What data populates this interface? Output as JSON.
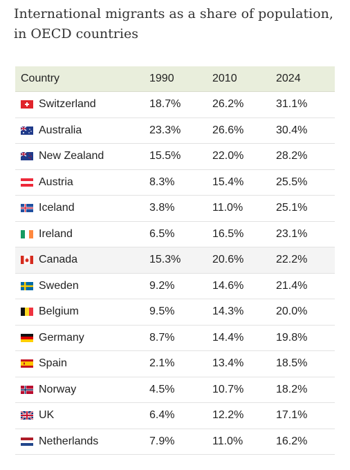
{
  "title": "International migrants as a share of population, in OECD countries",
  "chart_data": {
    "type": "table",
    "title": "International migrants as a share of population, in OECD countries",
    "columns": [
      "Country",
      "1990",
      "2010",
      "2024"
    ],
    "rows": [
      {
        "country": "Switzerland",
        "flag": "switzerland-flag-icon",
        "v1990": "18.7%",
        "v2010": "26.2%",
        "v2024": "31.1%"
      },
      {
        "country": "Australia",
        "flag": "australia-flag-icon",
        "v1990": "23.3%",
        "v2010": "26.6%",
        "v2024": "30.4%"
      },
      {
        "country": "New Zealand",
        "flag": "new-zealand-flag-icon",
        "v1990": "15.5%",
        "v2010": "22.0%",
        "v2024": "28.2%"
      },
      {
        "country": "Austria",
        "flag": "austria-flag-icon",
        "v1990": "8.3%",
        "v2010": "15.4%",
        "v2024": "25.5%"
      },
      {
        "country": "Iceland",
        "flag": "iceland-flag-icon",
        "v1990": "3.8%",
        "v2010": "11.0%",
        "v2024": "25.1%"
      },
      {
        "country": "Ireland",
        "flag": "ireland-flag-icon",
        "v1990": "6.5%",
        "v2010": "16.5%",
        "v2024": "23.1%"
      },
      {
        "country": "Canada",
        "flag": "canada-flag-icon",
        "v1990": "15.3%",
        "v2010": "20.6%",
        "v2024": "22.2%"
      },
      {
        "country": "Sweden",
        "flag": "sweden-flag-icon",
        "v1990": "9.2%",
        "v2010": "14.6%",
        "v2024": "21.4%"
      },
      {
        "country": "Belgium",
        "flag": "belgium-flag-icon",
        "v1990": "9.5%",
        "v2010": "14.3%",
        "v2024": "20.0%"
      },
      {
        "country": "Germany",
        "flag": "germany-flag-icon",
        "v1990": "8.7%",
        "v2010": "14.4%",
        "v2024": "19.8%"
      },
      {
        "country": "Spain",
        "flag": "spain-flag-icon",
        "v1990": "2.1%",
        "v2010": "13.4%",
        "v2024": "18.5%"
      },
      {
        "country": "Norway",
        "flag": "norway-flag-icon",
        "v1990": "4.5%",
        "v2010": "10.7%",
        "v2024": "18.2%"
      },
      {
        "country": "UK",
        "flag": "uk-flag-icon",
        "v1990": "6.4%",
        "v2010": "12.2%",
        "v2024": "17.1%"
      },
      {
        "country": "Netherlands",
        "flag": "netherlands-flag-icon",
        "v1990": "7.9%",
        "v2010": "11.0%",
        "v2024": "16.2%"
      }
    ]
  },
  "colors": {
    "header_bg": "#e9eedc",
    "alt_row_bg": "#f4f4f4",
    "border": "#e2e2e2"
  }
}
